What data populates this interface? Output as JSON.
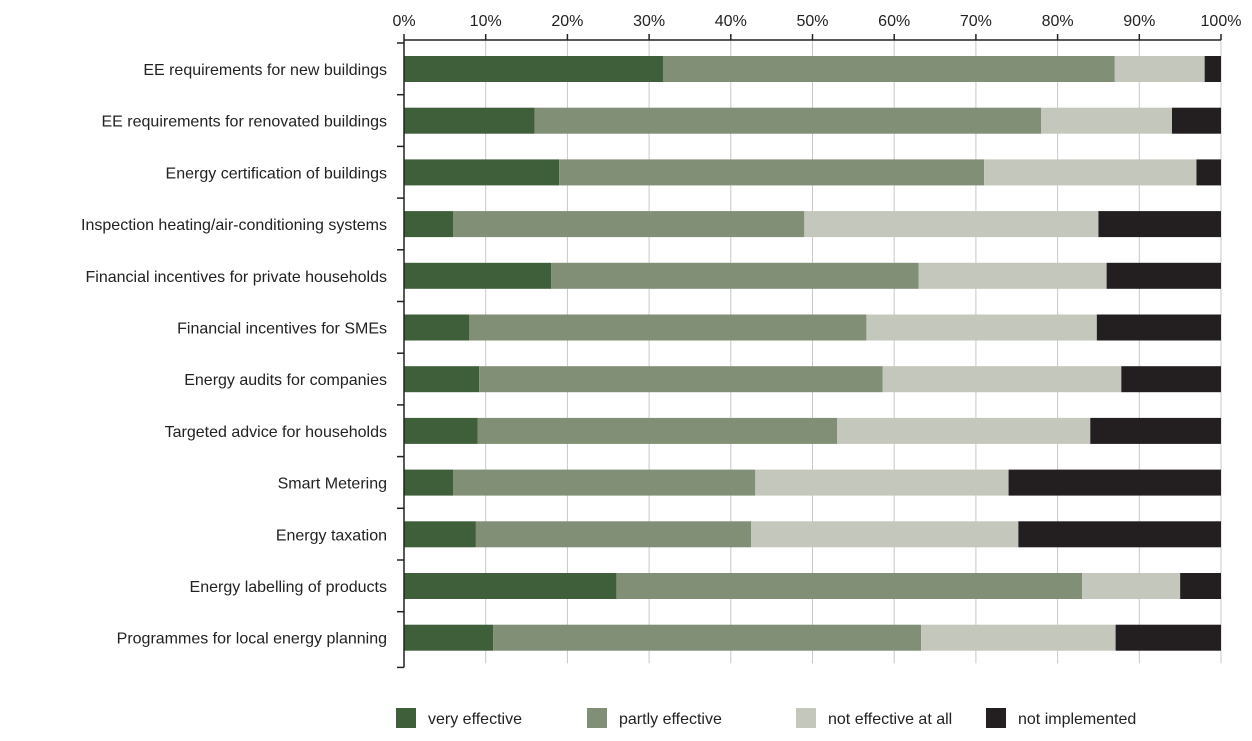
{
  "chart_data": {
    "type": "bar",
    "orientation": "horizontal",
    "stacked": true,
    "categories": [
      "EE requirements for new buildings",
      "EE requirements for renovated buildings",
      "Energy certification of buildings",
      "Inspection heating/air-conditioning systems",
      "Financial incentives for private households",
      "Financial incentives for SMEs",
      "Energy audits for companies",
      "Targeted advice for households",
      "Smart Metering",
      "Energy taxation",
      "Energy labelling of products",
      "Programmes for local energy planning"
    ],
    "series": [
      {
        "name": "very effective",
        "color": "#3f5f3b",
        "values": [
          31.7,
          16.0,
          19.0,
          6.0,
          18.0,
          8.0,
          9.2,
          9.0,
          6.0,
          8.8,
          26.0,
          10.9
        ]
      },
      {
        "name": "partly effective",
        "color": "#818f76",
        "values": [
          55.3,
          62.0,
          52.0,
          43.0,
          45.0,
          48.6,
          49.4,
          44.0,
          37.0,
          33.7,
          57.0,
          52.4
        ]
      },
      {
        "name": "not effective at all",
        "color": "#c4c7bb",
        "values": [
          11.0,
          16.0,
          26.0,
          36.0,
          23.0,
          28.2,
          29.2,
          31.0,
          31.0,
          32.7,
          12.0,
          23.8
        ]
      },
      {
        "name": "not implemented",
        "color": "#231f20",
        "values": [
          2.0,
          6.0,
          3.0,
          15.0,
          14.0,
          15.2,
          12.2,
          16.0,
          26.0,
          24.8,
          5.0,
          12.9
        ]
      }
    ],
    "x_ticks": [
      "0%",
      "10%",
      "20%",
      "30%",
      "40%",
      "50%",
      "60%",
      "70%",
      "80%",
      "90%",
      "100%"
    ],
    "xlim": [
      0,
      100
    ],
    "x_axis_position": "top",
    "grid": true,
    "legend_position": "bottom"
  }
}
